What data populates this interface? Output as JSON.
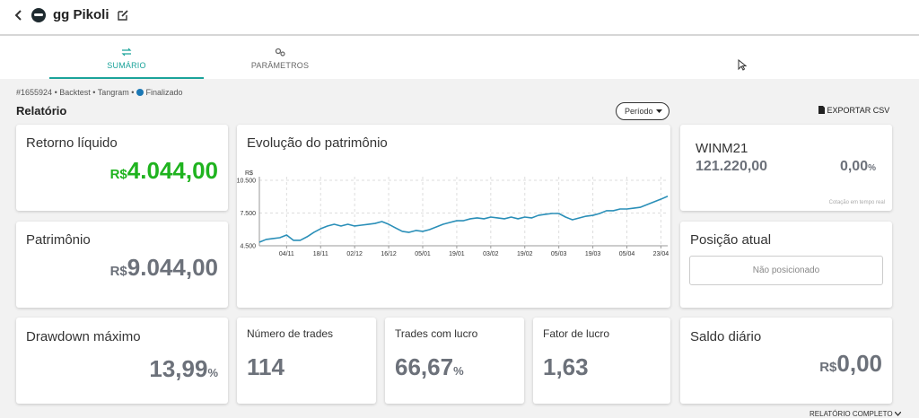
{
  "header": {
    "title": "gg Pikoli"
  },
  "tabs": [
    {
      "label": "SUMÁRIO",
      "active": true
    },
    {
      "label": "PARÂMETROS",
      "active": false
    }
  ],
  "breadcrumb": {
    "id": "#1655924",
    "separator": "•",
    "mode": "Backtest",
    "strategy": "Tangram",
    "status": "Finalizado"
  },
  "report": {
    "title": "Relatório",
    "period_button": "Período",
    "export": "EXPORTAR CSV",
    "full_report": "RELATÓRIO COMPLETO"
  },
  "cards": {
    "net_return": {
      "title": "Retorno líquido",
      "currency": "R$",
      "value": "4.044,00"
    },
    "equity": {
      "title": "Patrimônio",
      "currency": "R$",
      "value": "9.044,00"
    },
    "quote": {
      "symbol": "WINM21",
      "price": "121.220,00",
      "change": "0,00",
      "unit": "%",
      "note": "Cotação em tempo real"
    },
    "position": {
      "title": "Posição atual",
      "status": "Não posicionado"
    },
    "drawdown": {
      "title": "Drawdown máximo",
      "value": "13,99",
      "unit": "%"
    },
    "trades": {
      "title": "Número de trades",
      "value": "114"
    },
    "winning": {
      "title": "Trades com lucro",
      "value": "66,67",
      "unit": "%"
    },
    "profit_factor": {
      "title": "Fator de lucro",
      "value": "1,63"
    },
    "daily": {
      "title": "Saldo diário",
      "currency": "R$",
      "value": "0,00"
    }
  },
  "chart_data": {
    "type": "line",
    "title": "Evolução do patrimônio",
    "y_label": "R$",
    "categories": [
      null,
      null,
      null,
      null,
      "04/11",
      null,
      null,
      null,
      null,
      "18/11",
      null,
      null,
      null,
      null,
      "02/12",
      null,
      null,
      null,
      null,
      "16/12",
      null,
      null,
      null,
      null,
      "05/01",
      null,
      null,
      null,
      null,
      "19/01",
      null,
      null,
      null,
      null,
      "03/02",
      null,
      null,
      null,
      null,
      "19/02",
      null,
      null,
      null,
      null,
      "05/03",
      null,
      null,
      null,
      null,
      "19/03",
      null,
      null,
      null,
      null,
      "05/04",
      null,
      null,
      null,
      null,
      "23/04",
      null
    ],
    "values": [
      4830,
      5080,
      5160,
      5240,
      5490,
      5000,
      5000,
      5320,
      5730,
      6060,
      6310,
      6470,
      6310,
      6470,
      6310,
      6390,
      6470,
      6550,
      6720,
      6470,
      6140,
      5820,
      5730,
      5900,
      5820,
      5980,
      6230,
      6470,
      6640,
      6800,
      6800,
      6970,
      7050,
      6970,
      7130,
      7050,
      6970,
      7130,
      6970,
      7130,
      7050,
      7290,
      7380,
      7460,
      7460,
      7130,
      6880,
      7050,
      7210,
      7290,
      7460,
      7710,
      7710,
      7870,
      7870,
      7950,
      8030,
      8280,
      8530,
      8770,
      9044
    ],
    "color": "#2a8fb8",
    "ylim": [
      4500,
      10500
    ],
    "yticks": [
      {
        "value": 4500,
        "label": "4.500"
      },
      {
        "value": 7500,
        "label": "7.500"
      },
      {
        "value": 10500,
        "label": "10.500"
      }
    ],
    "grid": true
  }
}
